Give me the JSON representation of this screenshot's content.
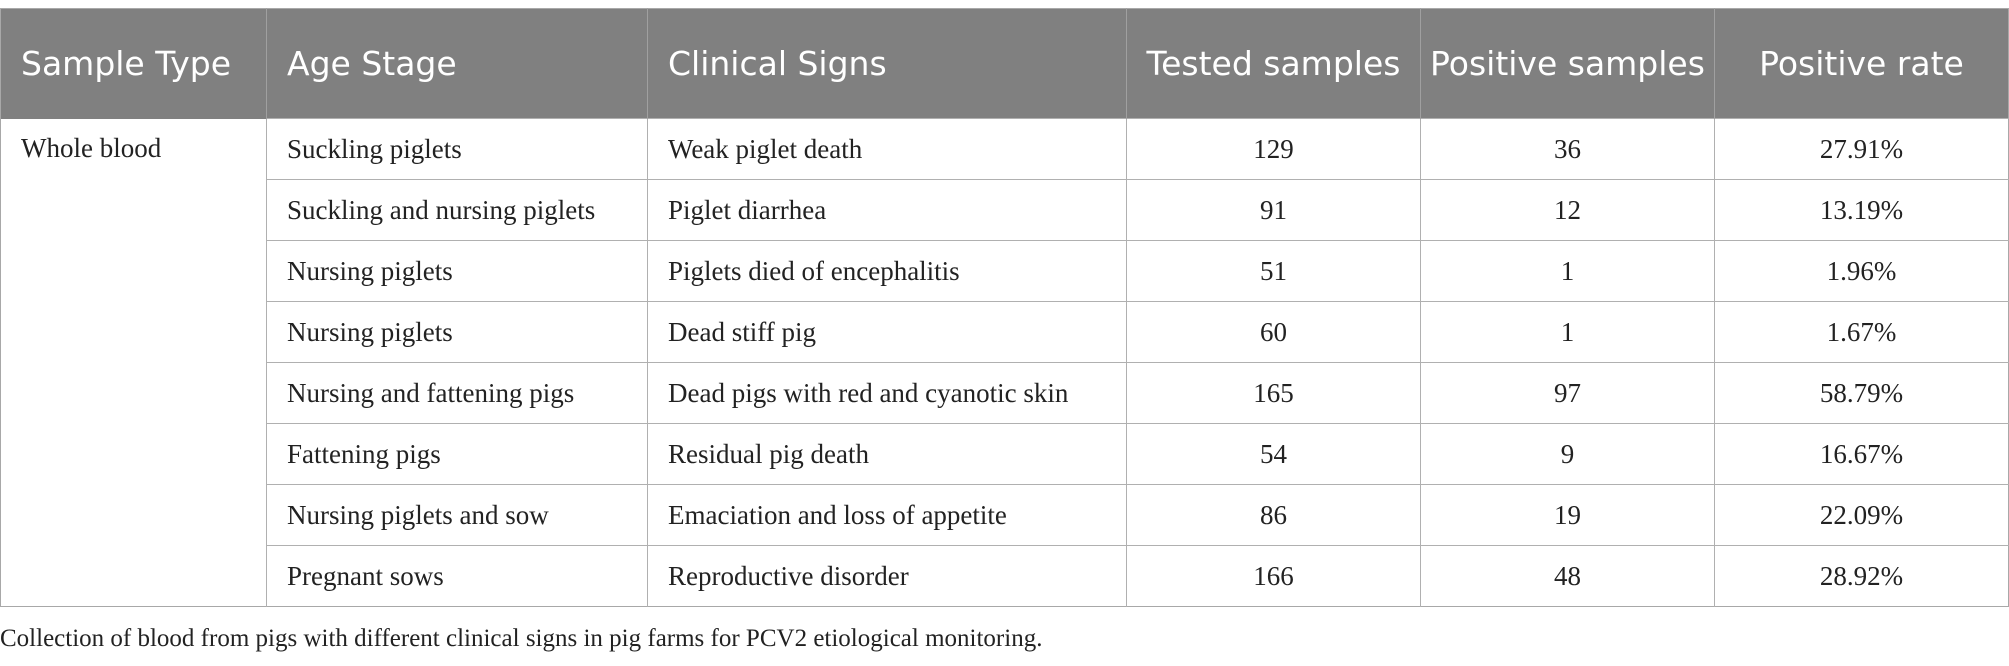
{
  "table": {
    "headers": [
      "Sample Type",
      "Age Stage",
      "Clinical Signs",
      "Tested samples",
      "Positive samples",
      "Positive rate"
    ],
    "sample_type": "Whole blood",
    "rows": [
      {
        "age_stage": "Suckling piglets",
        "clinical_signs": "Weak piglet death",
        "tested": "129",
        "positive": "36",
        "rate": "27.91%"
      },
      {
        "age_stage": "Suckling and nursing piglets",
        "clinical_signs": "Piglet diarrhea",
        "tested": "91",
        "positive": "12",
        "rate": "13.19%"
      },
      {
        "age_stage": "Nursing piglets",
        "clinical_signs": "Piglets died of encephalitis",
        "tested": "51",
        "positive": "1",
        "rate": "1.96%"
      },
      {
        "age_stage": "Nursing piglets",
        "clinical_signs": "Dead stiff pig",
        "tested": "60",
        "positive": "1",
        "rate": "1.67%"
      },
      {
        "age_stage": "Nursing and fattening pigs",
        "clinical_signs": "Dead pigs with red and cyanotic skin",
        "tested": "165",
        "positive": "97",
        "rate": "58.79%"
      },
      {
        "age_stage": "Fattening pigs",
        "clinical_signs": "Residual pig death",
        "tested": "54",
        "positive": "9",
        "rate": "16.67%"
      },
      {
        "age_stage": "Nursing piglets and sow",
        "clinical_signs": "Emaciation and loss of appetite",
        "tested": "86",
        "positive": "19",
        "rate": "22.09%"
      },
      {
        "age_stage": "Pregnant sows",
        "clinical_signs": "Reproductive disorder",
        "tested": "166",
        "positive": "48",
        "rate": "28.92%"
      }
    ]
  },
  "caption": "Collection of blood from pigs with different clinical signs in pig farms for PCV2 etiological monitoring."
}
